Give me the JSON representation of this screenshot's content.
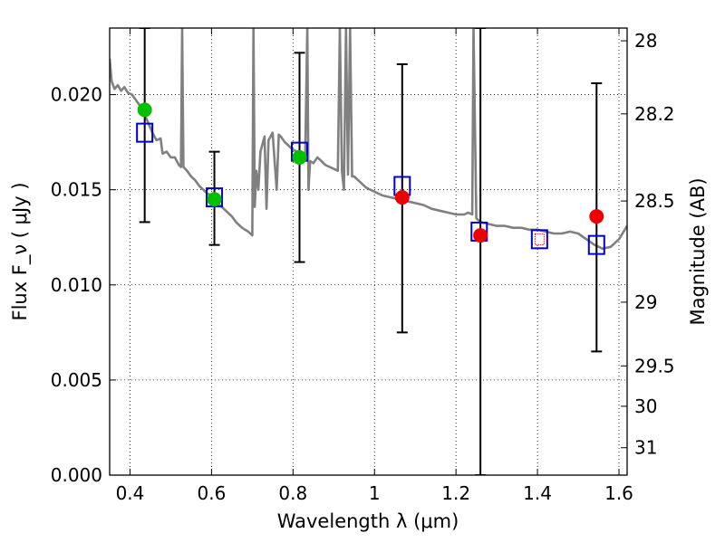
{
  "chart_data": {
    "type": "scatter",
    "xlabel": "Wavelength  λ (μm)",
    "ylabel": "Flux  F_ν  ( μJy )",
    "y2label": "Magnitude (AB)",
    "xlim": [
      0.35,
      1.62
    ],
    "ylim": [
      0.0,
      0.0235
    ],
    "grid": true,
    "x_ticks": [
      0.4,
      0.6,
      0.8,
      1.0,
      1.2,
      1.4,
      1.6
    ],
    "x_tick_labels": [
      "0.4",
      "0.6",
      "0.8",
      "1",
      "1.2",
      "1.4",
      "1.6"
    ],
    "y_ticks": [
      0.0,
      0.005,
      0.01,
      0.015,
      0.02
    ],
    "y_tick_labels": [
      "0.000",
      "0.005",
      "0.010",
      "0.015",
      "0.020"
    ],
    "y2_ticks": [
      {
        "label": "28",
        "flux": 0.02283
      },
      {
        "label": "28.2",
        "flux": 0.01899
      },
      {
        "label": "28.5",
        "flux": 0.01441
      },
      {
        "label": "29",
        "flux": 0.00909
      },
      {
        "label": "29.5",
        "flux": 0.00574
      },
      {
        "label": "30",
        "flux": 0.00362
      },
      {
        "label": "31",
        "flux": 0.00144
      }
    ],
    "colors": {
      "model": "#808080",
      "observed_blue": "#00c000",
      "observed_red": "#ee0000",
      "model_box": "#0000cc",
      "error_bar": "#000000"
    },
    "series": [
      {
        "type": "line",
        "points": [
          [
            0.35,
            0.0219
          ],
          [
            0.355,
            0.0207
          ],
          [
            0.362,
            0.0203
          ],
          [
            0.37,
            0.0205
          ],
          [
            0.378,
            0.0202
          ],
          [
            0.386,
            0.0204
          ],
          [
            0.395,
            0.0201
          ],
          [
            0.405,
            0.02
          ],
          [
            0.415,
            0.0197
          ],
          [
            0.425,
            0.0194
          ],
          [
            0.435,
            0.019
          ],
          [
            0.445,
            0.0185
          ],
          [
            0.455,
            0.018
          ],
          [
            0.465,
            0.0176
          ],
          [
            0.475,
            0.0177
          ],
          [
            0.48,
            0.0169
          ],
          [
            0.49,
            0.017
          ],
          [
            0.5,
            0.0167
          ],
          [
            0.51,
            0.0167
          ],
          [
            0.52,
            0.0163
          ],
          [
            0.525,
            0.0162
          ],
          [
            0.528,
            0.0235
          ],
          [
            0.531,
            0.0162
          ],
          [
            0.54,
            0.016
          ],
          [
            0.55,
            0.0157
          ],
          [
            0.56,
            0.0155
          ],
          [
            0.57,
            0.0152
          ],
          [
            0.58,
            0.015
          ],
          [
            0.59,
            0.0148
          ],
          [
            0.6,
            0.0147
          ],
          [
            0.61,
            0.0145
          ],
          [
            0.62,
            0.0142
          ],
          [
            0.63,
            0.014
          ],
          [
            0.64,
            0.0138
          ],
          [
            0.65,
            0.0136
          ],
          [
            0.66,
            0.0133
          ],
          [
            0.675,
            0.013
          ],
          [
            0.69,
            0.0128
          ],
          [
            0.7,
            0.0126
          ],
          [
            0.703,
            0.0235
          ],
          [
            0.706,
            0.0141
          ],
          [
            0.71,
            0.016
          ],
          [
            0.715,
            0.015
          ],
          [
            0.72,
            0.017
          ],
          [
            0.73,
            0.0178
          ],
          [
            0.735,
            0.014
          ],
          [
            0.74,
            0.0176
          ],
          [
            0.75,
            0.018
          ],
          [
            0.76,
            0.015
          ],
          [
            0.765,
            0.0179
          ],
          [
            0.77,
            0.0178
          ],
          [
            0.78,
            0.0175
          ],
          [
            0.79,
            0.0173
          ],
          [
            0.8,
            0.0171
          ],
          [
            0.81,
            0.017
          ],
          [
            0.82,
            0.0169
          ],
          [
            0.83,
            0.0168
          ],
          [
            0.835,
            0.0235
          ],
          [
            0.838,
            0.015
          ],
          [
            0.842,
            0.0165
          ],
          [
            0.85,
            0.0164
          ],
          [
            0.86,
            0.0167
          ],
          [
            0.87,
            0.0165
          ],
          [
            0.88,
            0.0163
          ],
          [
            0.89,
            0.0162
          ],
          [
            0.9,
            0.0161
          ],
          [
            0.91,
            0.016
          ],
          [
            0.915,
            0.0235
          ],
          [
            0.92,
            0.016
          ],
          [
            0.925,
            0.015
          ],
          [
            0.93,
            0.0235
          ],
          [
            0.935,
            0.0158
          ],
          [
            0.94,
            0.0235
          ],
          [
            0.945,
            0.0157
          ],
          [
            0.95,
            0.0157
          ],
          [
            0.96,
            0.0155
          ],
          [
            0.97,
            0.0153
          ],
          [
            0.98,
            0.0151
          ],
          [
            1.0,
            0.0149
          ],
          [
            1.02,
            0.0147
          ],
          [
            1.04,
            0.0146
          ],
          [
            1.06,
            0.0145
          ],
          [
            1.08,
            0.0144
          ],
          [
            1.1,
            0.0143
          ],
          [
            1.12,
            0.0142
          ],
          [
            1.14,
            0.014
          ],
          [
            1.16,
            0.0139
          ],
          [
            1.18,
            0.0138
          ],
          [
            1.2,
            0.0137
          ],
          [
            1.22,
            0.0137
          ],
          [
            1.23,
            0.0138
          ],
          [
            1.24,
            0.0137
          ],
          [
            1.243,
            0.0235
          ],
          [
            1.25,
            0.0135
          ],
          [
            1.26,
            0.0133
          ],
          [
            1.28,
            0.0132
          ],
          [
            1.3,
            0.0131
          ],
          [
            1.32,
            0.0131
          ],
          [
            1.34,
            0.013
          ],
          [
            1.36,
            0.013
          ],
          [
            1.38,
            0.0129
          ],
          [
            1.4,
            0.0129
          ],
          [
            1.42,
            0.0128
          ],
          [
            1.44,
            0.0127
          ],
          [
            1.46,
            0.0127
          ],
          [
            1.48,
            0.0128
          ],
          [
            1.5,
            0.0127
          ],
          [
            1.52,
            0.0124
          ],
          [
            1.54,
            0.0121
          ],
          [
            1.56,
            0.0119
          ],
          [
            1.58,
            0.012
          ],
          [
            1.6,
            0.0124
          ],
          [
            1.62,
            0.0131
          ]
        ]
      },
      {
        "type": "error_bars",
        "points": [
          {
            "x": 0.436,
            "low": 0.0133,
            "high": 0.0235
          },
          {
            "x": 0.607,
            "low": 0.0121,
            "high": 0.017
          },
          {
            "x": 0.816,
            "low": 0.0112,
            "high": 0.0222
          },
          {
            "x": 1.068,
            "low": 0.0075,
            "high": 0.0216
          },
          {
            "x": 1.26,
            "low": 0.0,
            "high": 0.0235
          },
          {
            "x": 1.545,
            "low": 0.0065,
            "high": 0.0206
          }
        ]
      },
      {
        "type": "boxes",
        "points": [
          [
            0.436,
            0.018
          ],
          [
            0.607,
            0.0146
          ],
          [
            0.816,
            0.017
          ],
          [
            1.068,
            0.0152
          ],
          [
            1.257,
            0.0128
          ],
          [
            1.405,
            0.0124
          ],
          [
            1.545,
            0.0121
          ]
        ]
      },
      {
        "type": "circles",
        "points": [
          [
            0.436,
            0.0192
          ],
          [
            0.607,
            0.0145
          ],
          [
            0.816,
            0.0167
          ]
        ]
      },
      {
        "type": "circles",
        "points": [
          [
            1.068,
            0.0146
          ],
          [
            1.26,
            0.0126
          ],
          [
            1.545,
            0.0136
          ]
        ]
      },
      {
        "type": "small_box",
        "points": [
          [
            1.405,
            0.0124
          ]
        ]
      }
    ]
  }
}
